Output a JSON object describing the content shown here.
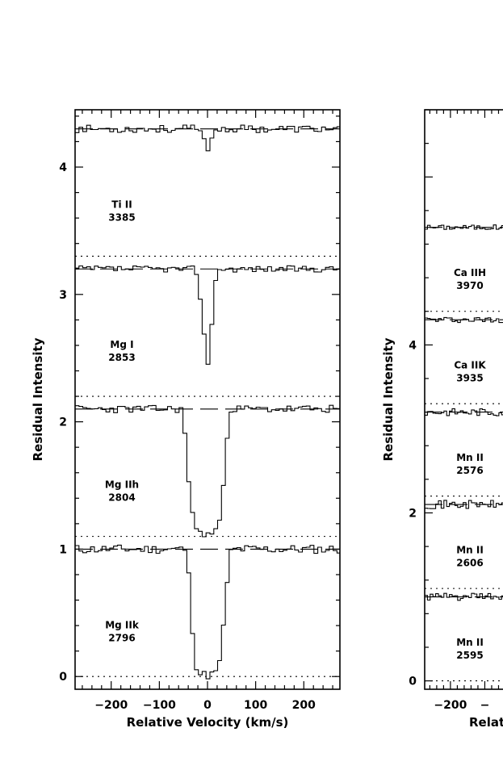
{
  "chart_data": [
    {
      "type": "line",
      "title": "",
      "xlabel": "Relative Velocity (km/s)",
      "ylabel": "Residual Intensity",
      "xlim": [
        -275,
        275
      ],
      "ylim": [
        -0.1,
        4.45
      ],
      "xticks": [
        "−200",
        "−100",
        "0",
        "100",
        "200"
      ],
      "yticks": [
        "0",
        "1",
        "2",
        "3",
        "4"
      ],
      "grid": false,
      "series": [
        {
          "ion": "Mg II",
          "ion_suffix": "k",
          "wavelength": "2796",
          "offset": 0,
          "continuum": 1.0,
          "absorption": [
            [
              -300,
              1.0
            ],
            [
              -45,
              1.0
            ],
            [
              -35,
              0.65
            ],
            [
              -30,
              0.3
            ],
            [
              -25,
              0.1
            ],
            [
              -15,
              0.02
            ],
            [
              0,
              0.01
            ],
            [
              15,
              0.02
            ],
            [
              25,
              0.1
            ],
            [
              30,
              0.3
            ],
            [
              38,
              0.6
            ],
            [
              45,
              0.88
            ],
            [
              50,
              1.0
            ],
            [
              300,
              1.0
            ]
          ],
          "noise": 0.035,
          "seed": 11
        },
        {
          "ion": "Mg II",
          "ion_suffix": "h",
          "wavelength": "2804",
          "offset": 1.1,
          "continuum": 1.0,
          "absorption": [
            [
              -300,
              1.0
            ],
            [
              -50,
              1.0
            ],
            [
              -45,
              0.65
            ],
            [
              -35,
              0.3
            ],
            [
              -25,
              0.05
            ],
            [
              -10,
              0.02
            ],
            [
              10,
              0.02
            ],
            [
              25,
              0.1
            ],
            [
              35,
              0.5
            ],
            [
              42,
              0.85
            ],
            [
              47,
              1.0
            ],
            [
              300,
              1.0
            ]
          ],
          "noise": 0.03,
          "seed": 23
        },
        {
          "ion": "Mg I",
          "ion_suffix": "",
          "wavelength": "2853",
          "offset": 2.2,
          "continuum": 1.0,
          "absorption": [
            [
              -300,
              1.0
            ],
            [
              -30,
              1.0
            ],
            [
              -22,
              0.93
            ],
            [
              -15,
              0.78
            ],
            [
              -8,
              0.55
            ],
            [
              0,
              0.22
            ],
            [
              5,
              0.35
            ],
            [
              10,
              0.6
            ],
            [
              15,
              0.88
            ],
            [
              20,
              1.0
            ],
            [
              300,
              1.0
            ]
          ],
          "noise": 0.025,
          "seed": 37
        },
        {
          "ion": "Ti II",
          "ion_suffix": "",
          "wavelength": "3385",
          "offset": 3.3,
          "continuum": 1.0,
          "absorption": [
            [
              -300,
              1.0
            ],
            [
              -20,
              1.0
            ],
            [
              -10,
              0.93
            ],
            [
              0,
              0.85
            ],
            [
              8,
              0.9
            ],
            [
              15,
              1.0
            ],
            [
              300,
              1.0
            ]
          ],
          "noise": 0.03,
          "seed": 53
        }
      ]
    },
    {
      "type": "line",
      "title": "",
      "xlabel": "Relat",
      "ylabel": "Residual Intensity",
      "xlim": [
        -275,
        275
      ],
      "ylim": [
        -0.1,
        6.8
      ],
      "xticks": [
        "−200",
        "−"
      ],
      "yticks": [
        "0",
        "2",
        "4"
      ],
      "grid": false,
      "series": [
        {
          "ion": "Mn II",
          "ion_suffix": "",
          "wavelength": "2595",
          "offset": 0,
          "continuum": 1.0,
          "noise": 0.045,
          "seed": 61
        },
        {
          "ion": "Mn II",
          "ion_suffix": "",
          "wavelength": "2606",
          "offset": 1.1,
          "continuum": 1.0,
          "noise": 0.05,
          "seed": 71
        },
        {
          "ion": "Mn II",
          "ion_suffix": "",
          "wavelength": "2576",
          "offset": 2.2,
          "continuum": 1.0,
          "noise": 0.045,
          "seed": 83
        },
        {
          "ion": "Ca II",
          "ion_suffix": "K",
          "wavelength": "3935",
          "offset": 3.3,
          "continuum": 1.0,
          "noise": 0.035,
          "seed": 97
        },
        {
          "ion": "Ca II",
          "ion_suffix": "H",
          "wavelength": "3970",
          "offset": 4.4,
          "continuum": 1.0,
          "noise": 0.03,
          "seed": 101
        }
      ]
    }
  ]
}
